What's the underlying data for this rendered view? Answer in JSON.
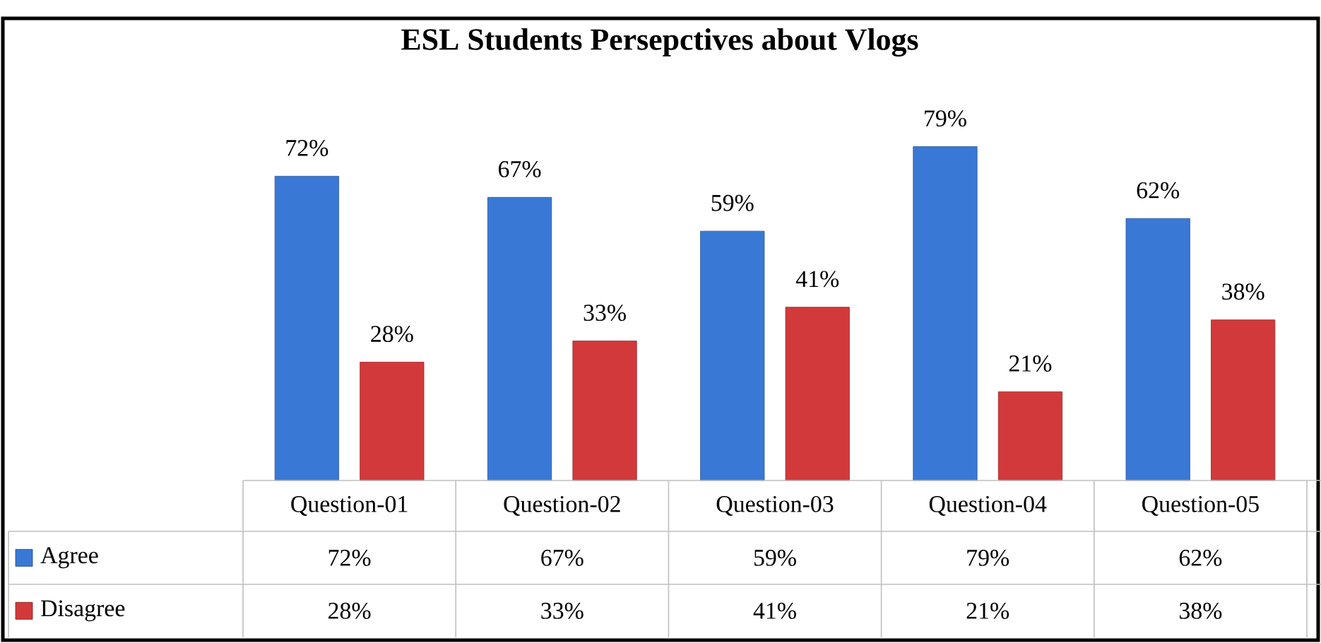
{
  "chart_data": {
    "type": "bar",
    "title": "ESL Students Persepctives about Vlogs",
    "categories": [
      "Question-01",
      "Question-02",
      "Question-03",
      "Question-04",
      "Question-05"
    ],
    "series": [
      {
        "name": "Agree",
        "color": "#3a78d6",
        "values": [
          72,
          67,
          59,
          79,
          62
        ],
        "value_labels": [
          "72%",
          "67%",
          "59%",
          "79%",
          "62%"
        ]
      },
      {
        "name": "Disagree",
        "color": "#d2393b",
        "values": [
          28,
          33,
          41,
          21,
          38
        ],
        "value_labels": [
          "28%",
          "33%",
          "41%",
          "21%",
          "38%"
        ]
      }
    ],
    "legend": "bottom left"
  }
}
